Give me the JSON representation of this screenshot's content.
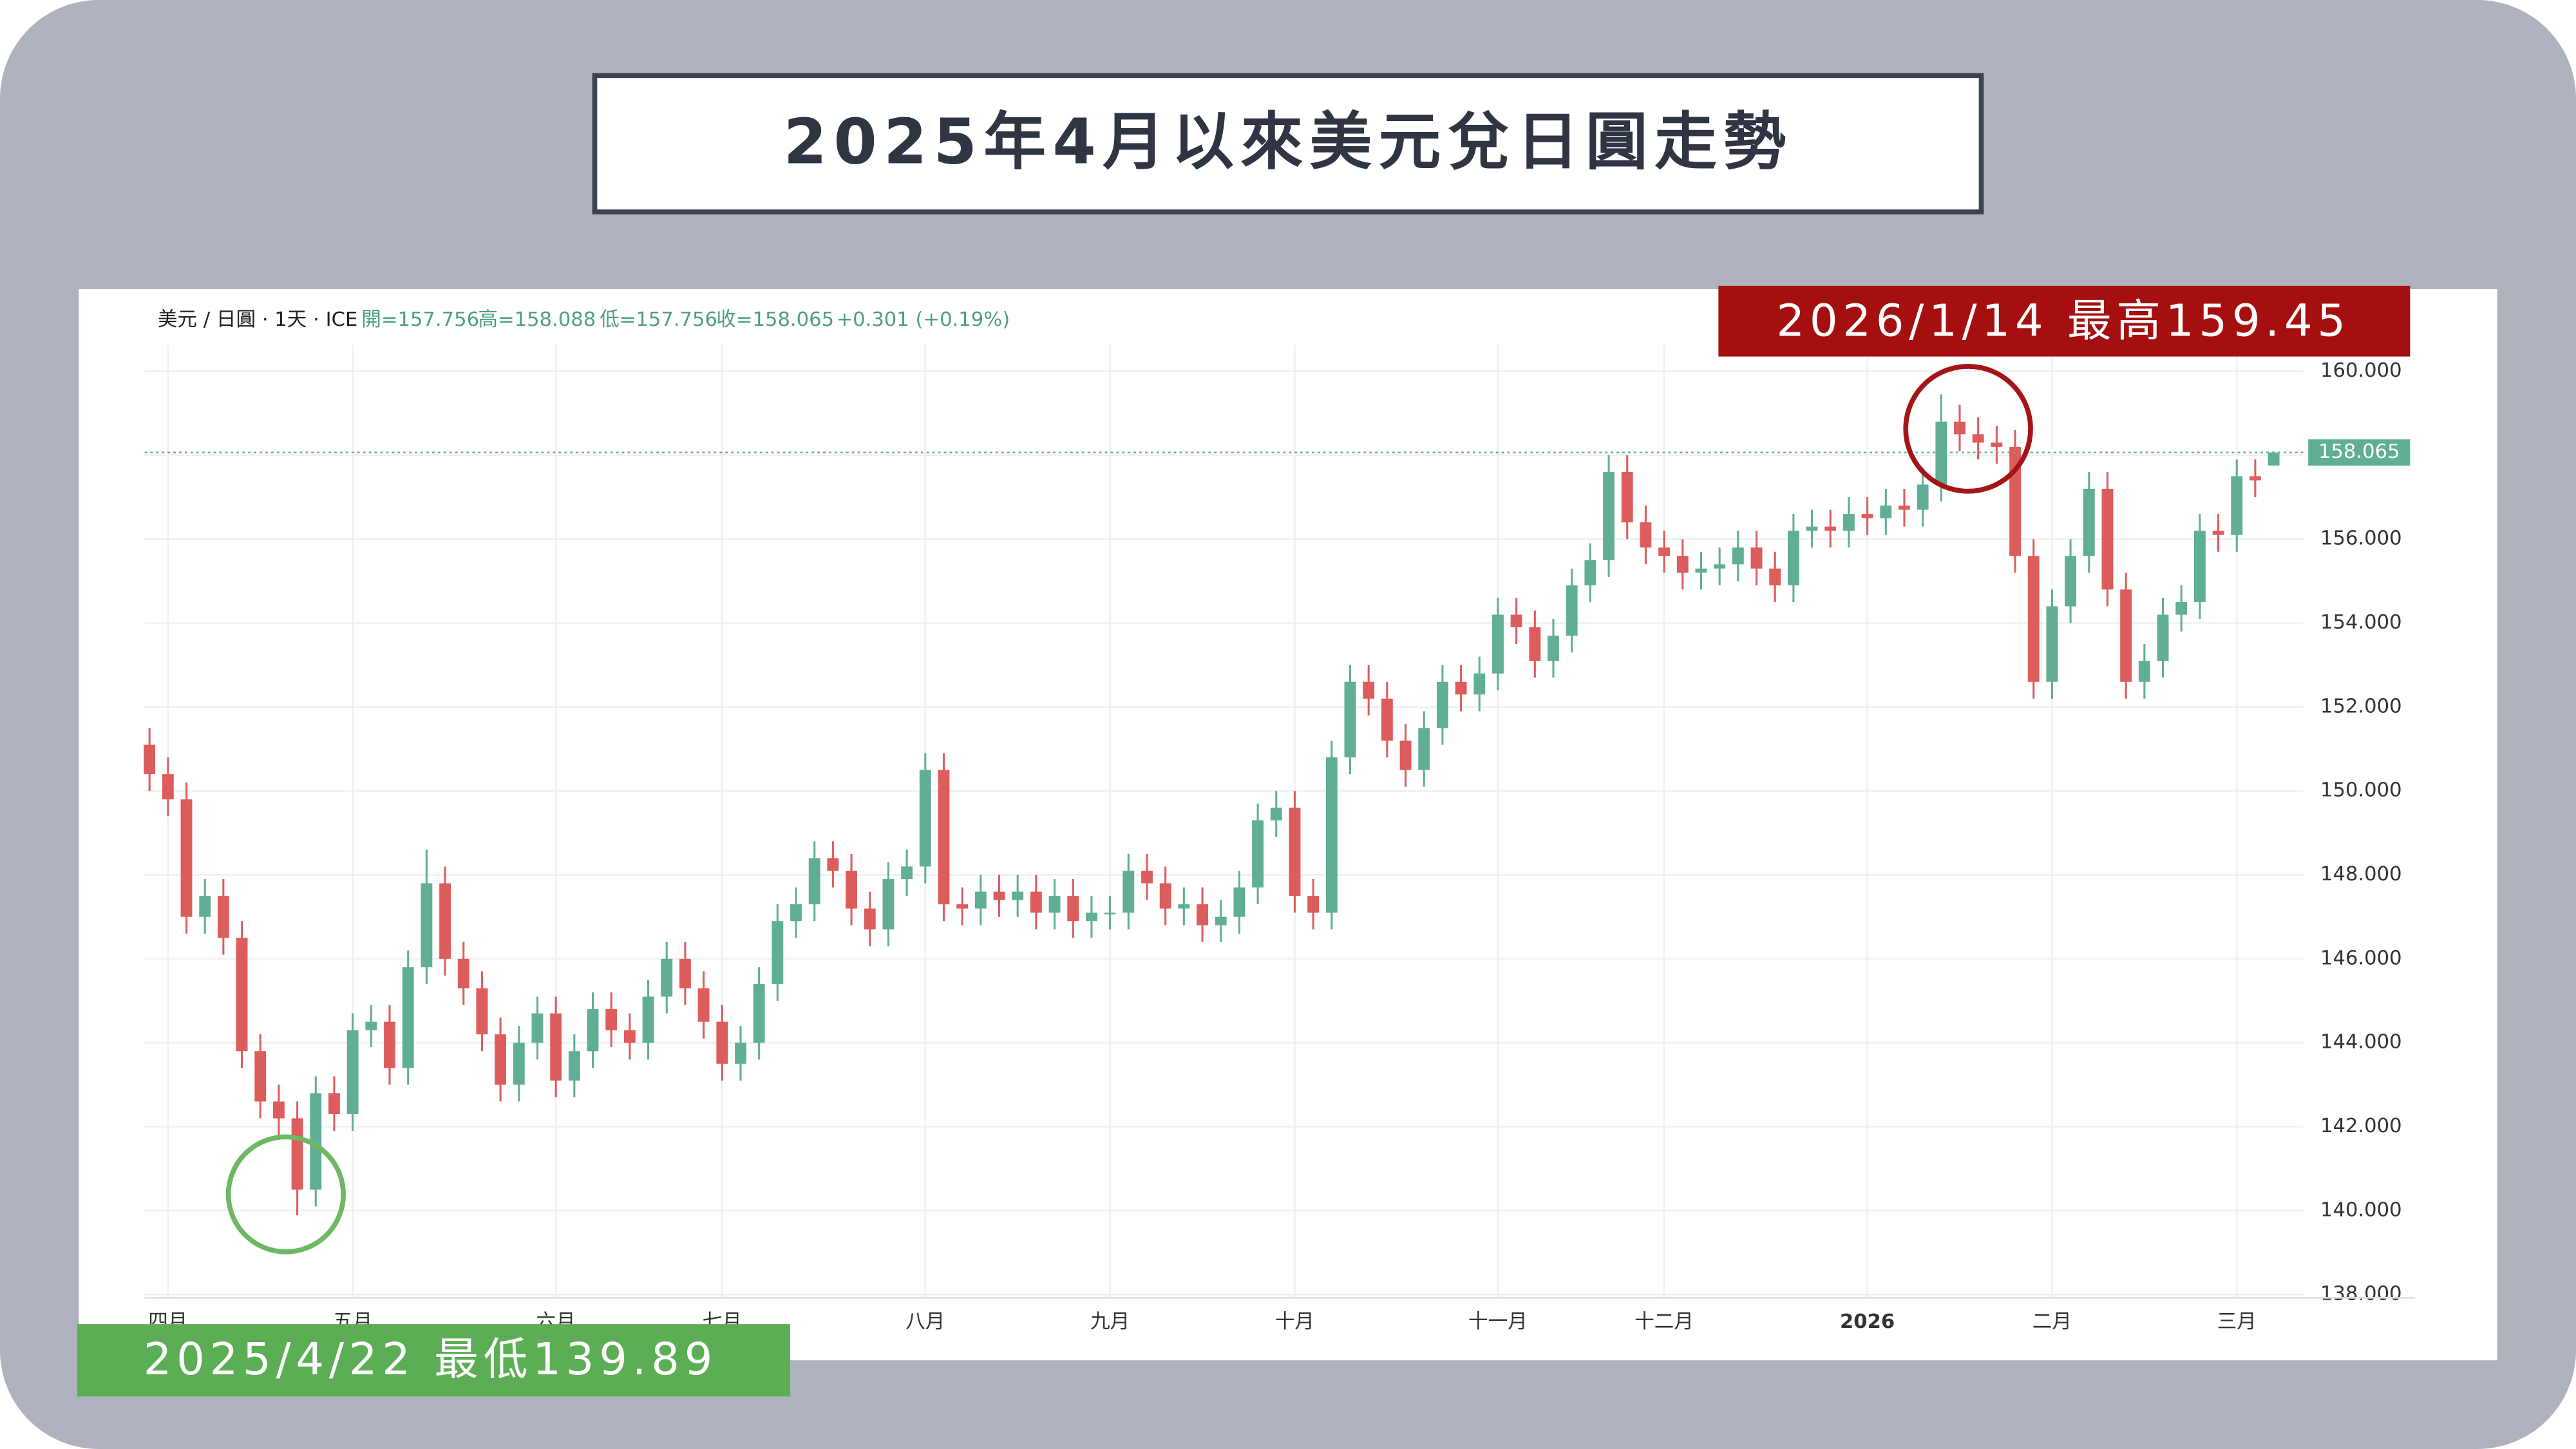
{
  "chart_data": {
    "type": "candlestick",
    "title": "2025年4月以來美元兌日圓走勢",
    "ohlc_header": {
      "symbol": "美元 / 日圓 · 1天 · ICE",
      "open": "開=157.756",
      "high": "高=158.088",
      "low": "低=157.756",
      "close": "收=158.065",
      "change": "+0.301 (+0.19%)"
    },
    "annotations": [
      "2026/1/14 最高159.45",
      "2025/4/22 最低139.89"
    ],
    "up_color": "#5fae95",
    "down_color": "#dd5c5c",
    "grid": true,
    "ylim": [
      138,
      160
    ],
    "yticks": [
      {
        "value": 138,
        "label": "138.000"
      },
      {
        "value": 140,
        "label": "140.000"
      },
      {
        "value": 142,
        "label": "142.000"
      },
      {
        "value": 144,
        "label": "144.000"
      },
      {
        "value": 146,
        "label": "146.000"
      },
      {
        "value": 148,
        "label": "148.000"
      },
      {
        "value": 150,
        "label": "150.000"
      },
      {
        "value": 152,
        "label": "152.000"
      },
      {
        "value": 154,
        "label": "154.000"
      },
      {
        "value": 156,
        "label": "156.000"
      },
      {
        "value": 158,
        "label": "158.000"
      },
      {
        "value": 160,
        "label": "160.000"
      }
    ],
    "last_price": 158.065,
    "categories": [
      null,
      "四月",
      null,
      null,
      null,
      null,
      null,
      null,
      null,
      null,
      null,
      "五月",
      null,
      null,
      null,
      null,
      null,
      null,
      null,
      null,
      null,
      null,
      "六月",
      null,
      null,
      null,
      null,
      null,
      null,
      null,
      null,
      "七月",
      null,
      null,
      null,
      null,
      null,
      null,
      null,
      null,
      null,
      null,
      "八月",
      null,
      null,
      null,
      null,
      null,
      null,
      null,
      null,
      null,
      "九月",
      null,
      null,
      null,
      null,
      null,
      null,
      null,
      null,
      null,
      "十月",
      null,
      null,
      null,
      null,
      null,
      null,
      null,
      null,
      null,
      null,
      "十一月",
      null,
      null,
      null,
      null,
      null,
      null,
      null,
      null,
      "十二月",
      null,
      null,
      null,
      null,
      null,
      null,
      null,
      null,
      null,
      null,
      "2026",
      null,
      null,
      null,
      null,
      null,
      null,
      null,
      null,
      null,
      "二月",
      null,
      null,
      null,
      null,
      null,
      null,
      null,
      null,
      null,
      "三月",
      null,
      null
    ],
    "open": [
      151.1,
      150.4,
      149.8,
      147.0,
      147.5,
      146.5,
      143.8,
      142.6,
      142.2,
      140.5,
      142.8,
      142.3,
      144.3,
      144.5,
      143.4,
      145.8,
      147.8,
      146.0,
      145.3,
      144.2,
      143.0,
      144.0,
      144.7,
      143.1,
      143.8,
      144.8,
      144.3,
      144.0,
      145.1,
      146.0,
      145.3,
      144.5,
      143.5,
      144.0,
      145.4,
      146.9,
      147.3,
      148.4,
      148.1,
      147.2,
      146.7,
      147.9,
      148.2,
      150.5,
      147.3,
      147.2,
      147.6,
      147.4,
      147.6,
      147.1,
      147.5,
      146.9,
      147.1,
      147.1,
      148.1,
      147.8,
      147.2,
      147.3,
      146.8,
      147.0,
      147.7,
      149.3,
      149.6,
      147.5,
      147.1,
      150.8,
      152.6,
      152.2,
      151.2,
      150.5,
      151.5,
      152.6,
      152.3,
      152.8,
      154.2,
      153.9,
      153.1,
      153.7,
      154.9,
      155.5,
      157.6,
      156.4,
      155.8,
      155.6,
      155.2,
      155.3,
      155.4,
      155.8,
      155.3,
      154.9,
      156.2,
      156.3,
      156.2,
      156.6,
      156.5,
      156.8,
      156.7,
      157.3,
      158.8,
      158.5,
      158.3,
      158.2,
      155.6,
      152.6,
      154.4,
      155.6,
      157.2,
      154.8,
      152.6,
      153.1,
      154.2,
      154.5,
      156.2,
      156.1,
      157.5,
      157.756
    ],
    "high": [
      151.5,
      150.8,
      150.2,
      147.9,
      147.9,
      146.9,
      144.2,
      143.0,
      142.6,
      143.2,
      143.2,
      144.7,
      144.9,
      144.9,
      146.2,
      148.6,
      148.2,
      146.4,
      145.7,
      144.6,
      144.4,
      145.1,
      145.1,
      144.2,
      145.2,
      145.2,
      144.7,
      145.5,
      146.4,
      146.4,
      145.7,
      144.9,
      144.4,
      145.8,
      147.3,
      147.7,
      148.8,
      148.8,
      148.5,
      147.6,
      148.3,
      148.6,
      150.9,
      150.9,
      147.7,
      148.0,
      148.0,
      148.0,
      148.0,
      147.9,
      147.9,
      147.5,
      147.5,
      148.5,
      148.5,
      148.2,
      147.7,
      147.7,
      147.4,
      148.1,
      149.7,
      150.0,
      150.0,
      147.9,
      151.2,
      153.0,
      153.0,
      152.6,
      151.6,
      151.9,
      153.0,
      153.0,
      153.2,
      154.6,
      154.6,
      154.3,
      154.1,
      155.3,
      155.9,
      158.0,
      158.0,
      156.8,
      156.2,
      156.0,
      155.7,
      155.8,
      156.2,
      156.2,
      155.7,
      156.6,
      156.7,
      156.7,
      157.0,
      157.0,
      157.2,
      157.2,
      157.7,
      159.45,
      159.2,
      158.9,
      158.7,
      158.6,
      156.0,
      154.8,
      156.0,
      157.6,
      157.6,
      155.2,
      153.5,
      154.6,
      154.9,
      156.6,
      156.6,
      157.9,
      157.9,
      158.088
    ],
    "low": [
      150.0,
      149.4,
      146.6,
      146.6,
      146.1,
      143.4,
      142.2,
      141.8,
      139.89,
      140.1,
      141.9,
      141.9,
      143.9,
      143.0,
      143.0,
      145.4,
      145.6,
      144.9,
      143.8,
      142.6,
      142.6,
      143.6,
      142.7,
      142.7,
      143.4,
      143.9,
      143.6,
      143.6,
      144.7,
      144.9,
      144.1,
      143.1,
      143.1,
      143.6,
      145.0,
      146.5,
      146.9,
      147.7,
      146.8,
      146.3,
      146.3,
      147.5,
      147.8,
      146.9,
      146.8,
      146.8,
      147.0,
      147.0,
      146.7,
      146.7,
      146.5,
      146.5,
      146.7,
      146.7,
      147.4,
      146.8,
      146.8,
      146.4,
      146.4,
      146.6,
      147.3,
      148.9,
      147.1,
      146.7,
      146.7,
      150.4,
      151.8,
      150.8,
      150.1,
      150.1,
      151.1,
      151.9,
      151.9,
      152.4,
      153.5,
      152.7,
      152.7,
      153.3,
      154.5,
      155.1,
      156.0,
      155.4,
      155.2,
      154.8,
      154.8,
      154.9,
      155.0,
      154.9,
      154.5,
      154.5,
      155.8,
      155.8,
      155.8,
      156.1,
      156.1,
      156.3,
      156.3,
      156.9,
      158.1,
      157.9,
      157.8,
      155.2,
      152.2,
      152.2,
      154.0,
      155.2,
      154.4,
      152.2,
      152.2,
      152.7,
      153.8,
      154.1,
      155.7,
      155.7,
      157.0,
      157.756
    ],
    "close": [
      150.4,
      149.8,
      147.0,
      147.5,
      146.5,
      143.8,
      142.6,
      142.2,
      140.5,
      142.8,
      142.3,
      144.3,
      144.5,
      143.4,
      145.8,
      147.8,
      146.0,
      145.3,
      144.2,
      143.0,
      144.0,
      144.7,
      143.1,
      143.8,
      144.8,
      144.3,
      144.0,
      145.1,
      146.0,
      145.3,
      144.5,
      143.5,
      144.0,
      145.4,
      146.9,
      147.3,
      148.4,
      148.1,
      147.2,
      146.7,
      147.9,
      148.2,
      150.5,
      147.3,
      147.2,
      147.6,
      147.4,
      147.6,
      147.1,
      147.5,
      146.9,
      147.1,
      147.1,
      148.1,
      147.8,
      147.2,
      147.3,
      146.8,
      147.0,
      147.7,
      149.3,
      149.6,
      147.5,
      147.1,
      150.8,
      152.6,
      152.2,
      151.2,
      150.5,
      151.5,
      152.6,
      152.3,
      152.8,
      154.2,
      153.9,
      153.1,
      153.7,
      154.9,
      155.5,
      157.6,
      156.4,
      155.8,
      155.6,
      155.2,
      155.3,
      155.4,
      155.8,
      155.3,
      154.9,
      156.2,
      156.3,
      156.2,
      156.6,
      156.5,
      156.8,
      156.7,
      157.3,
      158.8,
      158.5,
      158.3,
      158.2,
      155.6,
      152.6,
      154.4,
      155.6,
      157.2,
      154.8,
      152.6,
      153.1,
      154.2,
      154.5,
      156.2,
      156.1,
      157.5,
      157.4,
      158.065
    ]
  }
}
